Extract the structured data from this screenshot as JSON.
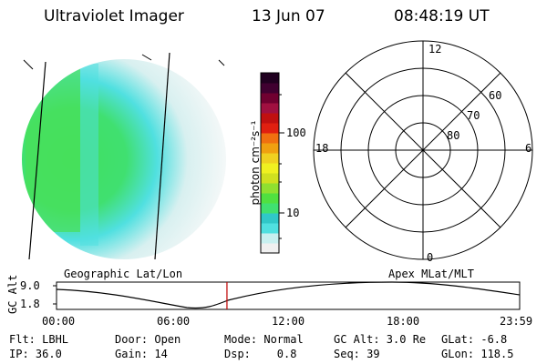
{
  "header": {
    "instrument": "Ultraviolet Imager",
    "date": "13 Jun 07",
    "time": "08:48:19 UT"
  },
  "colorbar": {
    "unit_label": "photon cm⁻²s⁻¹",
    "ticks": [
      "100",
      "10"
    ],
    "colors": [
      "#f0f0f0",
      "#c8f0f0",
      "#50e0e0",
      "#30c8c8",
      "#40e070",
      "#50e040",
      "#90e030",
      "#d0e020",
      "#f0f020",
      "#f0d020",
      "#f0a010",
      "#f07010",
      "#e02010",
      "#c01010",
      "#a01040",
      "#700030",
      "#400030",
      "#200020"
    ]
  },
  "polar": {
    "mlt_labels": {
      "top": "12",
      "left": "18",
      "right": "6",
      "bottom": "0"
    },
    "lat_labels": [
      "60",
      "70",
      "80"
    ]
  },
  "timeline": {
    "left_label": "Geographic Lat/Lon",
    "right_label": "Apex MLat/MLT",
    "y_axis_title": "GC Alt",
    "y_ticks": [
      "9.0",
      "1.8"
    ],
    "x_ticks": [
      "00:00",
      "06:00",
      "12:00",
      "18:00",
      "23:59"
    ],
    "current_time_fraction": 0.368
  },
  "info": {
    "row1": {
      "flt": "Flt: LBHL",
      "door": "Door: Open",
      "mode": "Mode: Normal",
      "gc_alt": "GC Alt: 3.0 Re",
      "glat": "GLat:  -6.8"
    },
    "row2": {
      "ip": "IP: 36.0",
      "gain": "Gain: 14",
      "dsp": "Dsp:    0.8",
      "seq": "Seq: 39",
      "glon": "GLon: 118.5"
    }
  }
}
